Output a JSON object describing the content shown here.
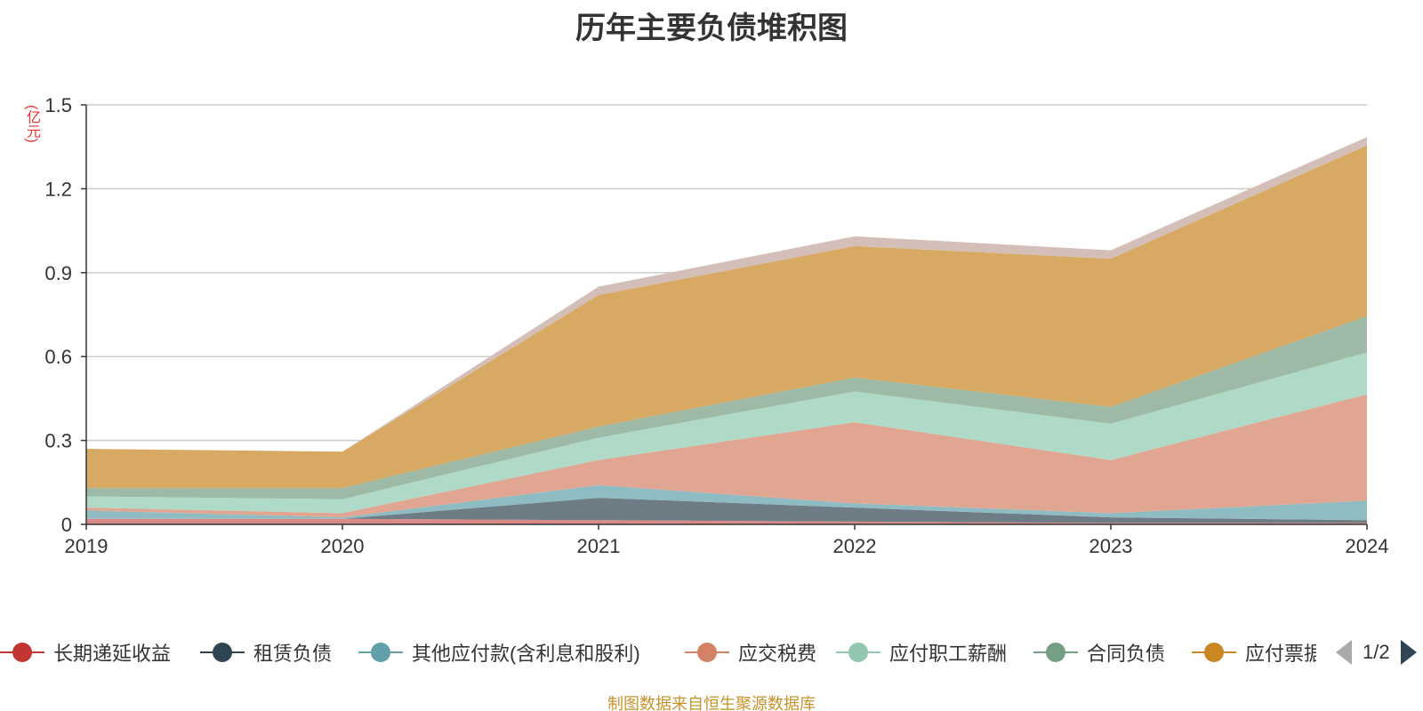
{
  "title": "历年主要负债堆积图",
  "unit_label": "(亿元)",
  "source": "制图数据来自恒生聚源数据库",
  "legend_page": "1/2",
  "colors": {
    "axis": "#333333",
    "grid": "#cccccc",
    "unit": "#e8312f",
    "source": "#c8922a"
  },
  "chart_data": {
    "type": "area",
    "stacked": true,
    "x": [
      "2019",
      "2020",
      "2021",
      "2022",
      "2023",
      "2024"
    ],
    "ylim": [
      0,
      1.5
    ],
    "yticks": [
      "0",
      "0.3",
      "0.6",
      "0.9",
      "1.2",
      "1.5"
    ],
    "grid": true,
    "legend_position": "bottom",
    "series": [
      {
        "name": "长期递延收益",
        "color": "#c23531",
        "fill": "#d98a87",
        "values": [
          0.02,
          0.02,
          0.015,
          0.01,
          0.005,
          0.005
        ]
      },
      {
        "name": "租赁负债",
        "color": "#2f4554",
        "fill": "#6e7c86",
        "values": [
          0.0,
          0.0,
          0.08,
          0.05,
          0.02,
          0.01
        ]
      },
      {
        "name": "其他应付款(含利息和股利)",
        "color": "#61a0a8",
        "fill": "#8fbcc2",
        "values": [
          0.03,
          0.005,
          0.045,
          0.015,
          0.015,
          0.07
        ]
      },
      {
        "name": "应交税费",
        "color": "#d48265",
        "fill": "#e1a692",
        "values": [
          0.01,
          0.015,
          0.09,
          0.29,
          0.19,
          0.38
        ]
      },
      {
        "name": "应付职工薪酬",
        "color": "#91c7ae",
        "fill": "#b0dac8",
        "values": [
          0.04,
          0.05,
          0.08,
          0.11,
          0.13,
          0.15
        ]
      },
      {
        "name": "合同负债",
        "color": "#749f83",
        "fill": "#9eb9a6",
        "values": [
          0.03,
          0.04,
          0.04,
          0.05,
          0.06,
          0.13
        ]
      },
      {
        "name": "应付票据",
        "color": "#ca8622",
        "fill": "#d8a962",
        "values": [
          0.14,
          0.13,
          0.47,
          0.47,
          0.53,
          0.61
        ]
      },
      {
        "name": "",
        "color": "#bda29a",
        "fill": "#d3beb8",
        "values": [
          0.0,
          0.0,
          0.03,
          0.035,
          0.03,
          0.03
        ]
      }
    ],
    "visible_legend_labels": [
      "长期递延收益",
      "租赁负债",
      "其他应付款(含利息和股利)",
      "应交税费",
      "应付职工薪酬",
      "合同负债",
      "应付票据"
    ]
  }
}
